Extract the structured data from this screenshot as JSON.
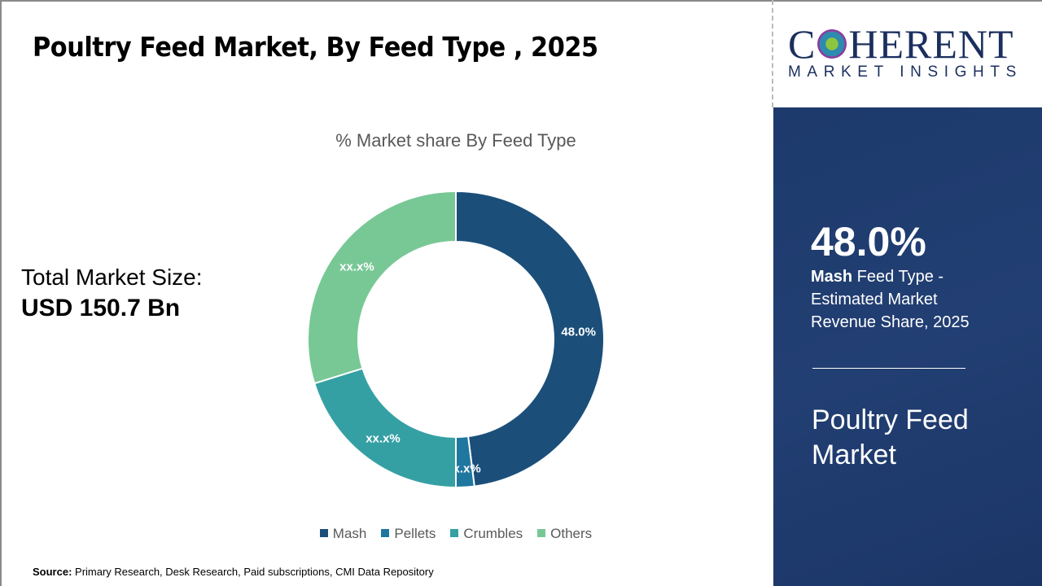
{
  "title": "Poultry Feed Market, By Feed Type , 2025",
  "total": {
    "label": "Total Market Size:",
    "value": "USD 150.7 Bn"
  },
  "source": {
    "label": "Source:",
    "text": " Primary Research, Desk Research, Paid subscriptions, CMI Data Repository"
  },
  "logo": {
    "brand_pre": "C",
    "brand_post": "HERENT",
    "tagline": "MARKET INSIGHTS"
  },
  "panel": {
    "percent": "48.0%",
    "segment": "Mash",
    "desc_rest": " Feed Type - Estimated Market Revenue Share, 2025",
    "market": "Poultry Feed Market"
  },
  "chart_data": {
    "type": "donut",
    "title": "% Market share By Feed Type",
    "categories": [
      "Mash",
      "Pellets",
      "Crumbles",
      "Others"
    ],
    "values": [
      48.0,
      2.0,
      20.2,
      29.8
    ],
    "data_labels": [
      "48.0%",
      "xx.x%",
      "xx.x%",
      "xx.x%"
    ],
    "colors": [
      "#1b4f7a",
      "#1f77a0",
      "#35a0a4",
      "#78c896"
    ],
    "legend": "bottom"
  }
}
